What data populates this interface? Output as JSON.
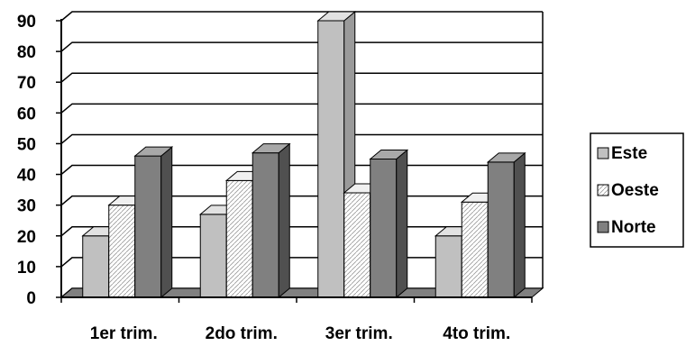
{
  "chart_data": {
    "type": "bar",
    "style": "3d-clustered-column",
    "categories": [
      "1er trim.",
      "2do trim.",
      "3er trim.",
      "4to trim."
    ],
    "series": [
      {
        "name": "Este",
        "values": [
          20,
          27,
          90,
          20
        ],
        "color": "#c0c0c0",
        "pattern": "solid"
      },
      {
        "name": "Oeste",
        "values": [
          30,
          38,
          34,
          31
        ],
        "color": "#ffffff",
        "pattern": "diagonal-hatch"
      },
      {
        "name": "Norte",
        "values": [
          46,
          47,
          45,
          44
        ],
        "color": "#808080",
        "pattern": "solid"
      }
    ],
    "ylim": [
      0,
      90
    ],
    "yticks": [
      0,
      10,
      20,
      30,
      40,
      50,
      60,
      70,
      80,
      90
    ],
    "grid": true,
    "legend_position": "right",
    "title": "",
    "xlabel": "",
    "ylabel": ""
  }
}
